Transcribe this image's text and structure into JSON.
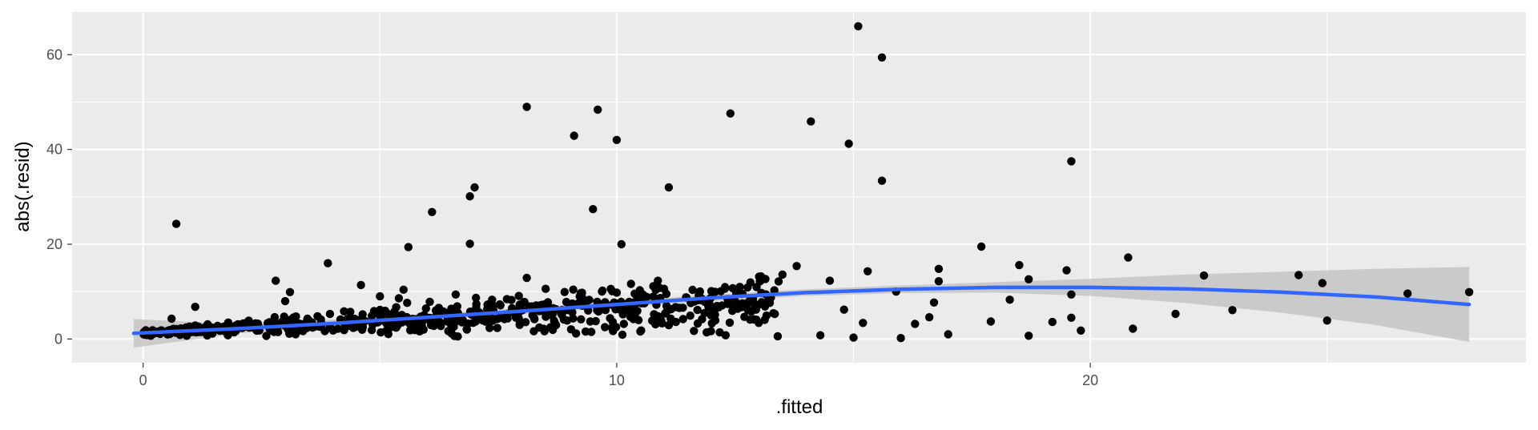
{
  "chart_data": {
    "type": "scatter",
    "title": "",
    "xlabel": ".fitted",
    "ylabel": "abs(.resid)",
    "xlim": [
      -1.5,
      29.2
    ],
    "ylim": [
      -5,
      69
    ],
    "x_ticks": [
      0,
      10,
      20
    ],
    "x_tick_labels": [
      "0",
      "10",
      "20"
    ],
    "y_ticks": [
      0,
      20,
      40,
      60
    ],
    "y_tick_labels": [
      "0",
      "20",
      "40",
      "60"
    ],
    "grid": true,
    "background": "#ebebeb",
    "point_color": "#000000",
    "smooth_color": "#3366ff",
    "band_color": "#c4c4c4",
    "notable_points": [
      {
        "x": 0.7,
        "y": 24.3
      },
      {
        "x": 0.2,
        "y": 1.2
      },
      {
        "x": 0.6,
        "y": 4.3
      },
      {
        "x": 1.1,
        "y": 6.8
      },
      {
        "x": 2.8,
        "y": 12.3
      },
      {
        "x": 3.1,
        "y": 9.9
      },
      {
        "x": 3.0,
        "y": 8.0
      },
      {
        "x": 3.9,
        "y": 16.0
      },
      {
        "x": 4.6,
        "y": 11.4
      },
      {
        "x": 5.0,
        "y": 9.0
      },
      {
        "x": 5.5,
        "y": 10.4
      },
      {
        "x": 5.4,
        "y": 8.6
      },
      {
        "x": 5.6,
        "y": 19.4
      },
      {
        "x": 6.1,
        "y": 26.8
      },
      {
        "x": 6.9,
        "y": 30.1
      },
      {
        "x": 7.0,
        "y": 32.0
      },
      {
        "x": 6.9,
        "y": 20.1
      },
      {
        "x": 6.6,
        "y": 9.4
      },
      {
        "x": 8.1,
        "y": 49.0
      },
      {
        "x": 8.1,
        "y": 12.9
      },
      {
        "x": 8.5,
        "y": 10.6
      },
      {
        "x": 9.1,
        "y": 42.9
      },
      {
        "x": 9.6,
        "y": 48.4
      },
      {
        "x": 9.5,
        "y": 27.4
      },
      {
        "x": 10.0,
        "y": 42.0
      },
      {
        "x": 10.1,
        "y": 20.0
      },
      {
        "x": 9.7,
        "y": 10.2
      },
      {
        "x": 10.0,
        "y": 9.8
      },
      {
        "x": 10.8,
        "y": 11.0
      },
      {
        "x": 11.1,
        "y": 32.0
      },
      {
        "x": 11.0,
        "y": 10.6
      },
      {
        "x": 12.0,
        "y": 10.1
      },
      {
        "x": 12.4,
        "y": 47.6
      },
      {
        "x": 12.6,
        "y": 11.0
      },
      {
        "x": 13.5,
        "y": 13.6
      },
      {
        "x": 13.8,
        "y": 15.4
      },
      {
        "x": 14.1,
        "y": 45.9
      },
      {
        "x": 14.5,
        "y": 12.3
      },
      {
        "x": 14.9,
        "y": 41.2
      },
      {
        "x": 15.1,
        "y": 66.0
      },
      {
        "x": 15.6,
        "y": 59.4
      },
      {
        "x": 15.6,
        "y": 33.4
      },
      {
        "x": 15.3,
        "y": 14.3
      },
      {
        "x": 15.9,
        "y": 10.0
      },
      {
        "x": 16.8,
        "y": 14.8
      },
      {
        "x": 16.8,
        "y": 12.2
      },
      {
        "x": 17.7,
        "y": 19.5
      },
      {
        "x": 17.9,
        "y": 3.7
      },
      {
        "x": 18.5,
        "y": 15.6
      },
      {
        "x": 18.7,
        "y": 12.6
      },
      {
        "x": 18.3,
        "y": 8.3
      },
      {
        "x": 18.7,
        "y": 0.7
      },
      {
        "x": 19.2,
        "y": 3.6
      },
      {
        "x": 19.6,
        "y": 37.5
      },
      {
        "x": 19.5,
        "y": 14.5
      },
      {
        "x": 19.6,
        "y": 9.4
      },
      {
        "x": 19.6,
        "y": 4.5
      },
      {
        "x": 19.8,
        "y": 1.8
      },
      {
        "x": 20.8,
        "y": 17.2
      },
      {
        "x": 20.9,
        "y": 2.2
      },
      {
        "x": 21.8,
        "y": 5.3
      },
      {
        "x": 22.4,
        "y": 13.4
      },
      {
        "x": 23.0,
        "y": 6.1
      },
      {
        "x": 24.4,
        "y": 13.5
      },
      {
        "x": 24.9,
        "y": 11.8
      },
      {
        "x": 25.0,
        "y": 3.9
      },
      {
        "x": 26.7,
        "y": 9.6
      },
      {
        "x": 28.0,
        "y": 9.9
      },
      {
        "x": 16.0,
        "y": 0.2
      },
      {
        "x": 16.3,
        "y": 3.2
      },
      {
        "x": 16.6,
        "y": 4.6
      },
      {
        "x": 17.0,
        "y": 1.0
      },
      {
        "x": 16.7,
        "y": 7.7
      },
      {
        "x": 15.0,
        "y": 0.3
      },
      {
        "x": 15.2,
        "y": 3.4
      },
      {
        "x": 14.8,
        "y": 6.2
      },
      {
        "x": 14.3,
        "y": 0.8
      },
      {
        "x": 13.4,
        "y": 0.6
      },
      {
        "x": 13.0,
        "y": 3.4
      },
      {
        "x": 12.3,
        "y": 0.8
      },
      {
        "x": 11.9,
        "y": 1.4
      },
      {
        "x": 11.4,
        "y": 4.2
      },
      {
        "x": 10.5,
        "y": 1.6
      }
    ],
    "cluster": {
      "x_range": [
        0,
        13.5
      ],
      "trend_intercept": 1.3,
      "trend_slope": 0.5,
      "spread_at_max": 5.2,
      "count": 640
    },
    "smooth_x": [
      -0.2,
      2,
      4,
      6,
      8,
      10,
      12,
      14,
      16,
      18,
      20,
      22,
      24,
      26,
      28
    ],
    "smooth_y": [
      1.2,
      2.2,
      3.3,
      4.6,
      5.9,
      7.3,
      8.7,
      9.8,
      10.5,
      10.9,
      10.9,
      10.6,
      9.9,
      8.9,
      7.3
    ],
    "band_lower": [
      -1.8,
      1.2,
      2.5,
      4.0,
      5.2,
      6.7,
      8.0,
      9.1,
      9.7,
      9.8,
      9.1,
      7.6,
      5.6,
      3.0,
      -0.6
    ],
    "band_upper": [
      4.2,
      3.2,
      4.1,
      5.2,
      6.6,
      7.9,
      9.4,
      10.5,
      11.3,
      12.0,
      12.7,
      13.6,
      14.2,
      14.8,
      15.2
    ]
  }
}
